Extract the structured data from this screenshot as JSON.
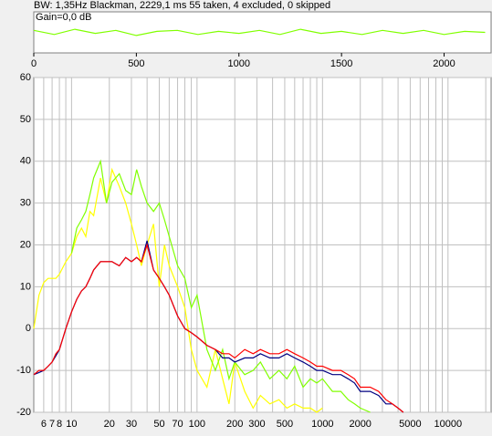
{
  "chart_data": [
    {
      "type": "line",
      "title": "BW: 1,35Hz Blackman, 2229,1 ms 55 taken, 4 excluded, 0 skipped",
      "annotation": "Gain=0,0 dB",
      "x": [
        0,
        100,
        200,
        300,
        400,
        500,
        600,
        700,
        800,
        900,
        1000,
        1100,
        1200,
        1300,
        1400,
        1500,
        1600,
        1700,
        1800,
        1900,
        2000,
        2100,
        2200
      ],
      "series": [
        {
          "color": "#80ff00",
          "values": [
            0.1,
            -0.1,
            0.15,
            -0.05,
            0.1,
            -0.15,
            0.05,
            0.1,
            -0.1,
            0.05,
            -0.05,
            0.1,
            -0.1,
            0.15,
            -0.05,
            0.05,
            -0.1,
            0.1,
            -0.05,
            0.1,
            -0.1,
            0.05,
            0
          ]
        }
      ],
      "xlim": [
        0,
        2229
      ],
      "xticks": [
        0,
        500,
        1000,
        1500,
        2000
      ],
      "ylim": [
        -1,
        1
      ]
    },
    {
      "type": "line",
      "xscale": "log",
      "grid": true,
      "x": [
        5,
        5.5,
        6,
        6.5,
        7,
        7.5,
        8,
        9,
        10,
        11,
        12,
        13,
        14,
        15,
        17,
        19,
        21,
        24,
        27,
        30,
        33,
        36,
        40,
        45,
        50,
        55,
        60,
        70,
        80,
        90,
        100,
        120,
        140,
        160,
        180,
        200,
        240,
        280,
        320,
        380,
        450,
        520,
        600,
        700,
        800,
        900,
        1000,
        1200,
        1400,
        1600,
        1800,
        2000,
        2400,
        2800,
        3200,
        3600,
        4000,
        4400
      ],
      "series": [
        {
          "color": "#ffff00",
          "values": [
            0,
            8,
            11,
            12,
            12,
            12,
            13,
            16,
            18,
            22,
            24,
            22,
            28,
            27,
            36,
            30,
            38,
            34,
            30,
            25,
            20,
            15,
            20,
            25,
            10,
            20,
            15,
            10,
            5,
            -5,
            -10,
            -14,
            -5,
            -12,
            -18,
            -8,
            -15,
            -19,
            -16,
            -18,
            -17,
            -19,
            -18,
            -19,
            -19,
            -20,
            -19,
            null,
            null,
            null,
            null,
            null,
            null,
            null,
            null,
            null,
            null,
            null
          ]
        },
        {
          "color": "#80ff00",
          "values": [
            null,
            null,
            null,
            null,
            null,
            null,
            null,
            null,
            18,
            24,
            26,
            28,
            32,
            36,
            40,
            30,
            35,
            37,
            33,
            32,
            38,
            34,
            30,
            28,
            30,
            26,
            22,
            15,
            12,
            5,
            8,
            -5,
            -10,
            -5,
            -12,
            -8,
            -11,
            -10,
            -8,
            -12,
            -10,
            -12,
            -9,
            -14,
            -12,
            -13,
            -12,
            -15,
            -15,
            -17,
            -18,
            -19,
            -20,
            null,
            null,
            null,
            null,
            null
          ]
        },
        {
          "color": "#000080",
          "values": [
            -11,
            -10.5,
            -10,
            -9,
            -8,
            -6.5,
            -5,
            0,
            4,
            7,
            9,
            10,
            12,
            14,
            16,
            16,
            16,
            15,
            17,
            16,
            17,
            16,
            21,
            14,
            12,
            10,
            8,
            3,
            0,
            -1,
            -2,
            -4,
            -5,
            -7,
            -7,
            -8,
            -7,
            -7,
            -6,
            -7,
            -7,
            -6,
            -7,
            -8,
            -9,
            -10,
            -10,
            -11,
            -11,
            -12,
            -13,
            -15,
            -15,
            -16,
            -18,
            -18,
            -19,
            -20
          ]
        },
        {
          "color": "#ff0000",
          "values": [
            -11,
            -10,
            -10,
            -9,
            -8,
            -6,
            -5,
            0,
            4,
            7,
            9,
            10,
            12,
            14,
            16,
            16,
            16,
            15,
            17,
            16,
            17,
            16,
            20,
            14,
            12,
            10,
            8,
            3,
            0,
            -1,
            -2,
            -4,
            -5,
            -6,
            -6,
            -7,
            -5,
            -6,
            -5,
            -6,
            -6,
            -5,
            -6,
            -7,
            -8,
            -9,
            -9,
            -10,
            -10,
            -11,
            -12,
            -14,
            -14,
            -15,
            -17,
            -18,
            -19,
            -20
          ]
        }
      ],
      "xlim": [
        5,
        22050
      ],
      "xticks": [
        6,
        7,
        8,
        10,
        20,
        30,
        50,
        70,
        100,
        200,
        300,
        500,
        1000,
        2000,
        5000,
        10000
      ],
      "minor_xticks": [
        9,
        40,
        60,
        80,
        90,
        400,
        600,
        700,
        800,
        900,
        3000,
        4000,
        6000,
        7000,
        8000,
        9000,
        20000
      ],
      "ylim": [
        -20,
        60
      ],
      "yticks": [
        -20,
        -10,
        0,
        10,
        20,
        30,
        40,
        50,
        60
      ]
    }
  ]
}
